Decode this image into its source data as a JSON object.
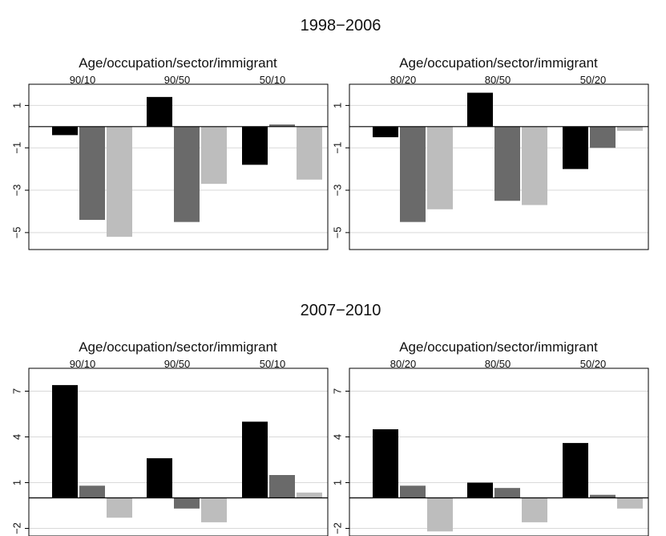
{
  "colors": {
    "bar_series_1": "#000000",
    "bar_series_2": "#6a6a6a",
    "bar_series_3": "#bdbdbd",
    "gridline": "#d9d9d9",
    "frame": "#000000"
  },
  "sections": [
    {
      "title": "1998−2006"
    },
    {
      "title": "2007−2010"
    }
  ],
  "chart_data": [
    {
      "type": "bar",
      "period": "1998−2006",
      "title": "Age/occupation/sector/immigrant",
      "categories": [
        "90/10",
        "90/50",
        "50/10"
      ],
      "series": [
        {
          "values": [
            -0.4,
            1.4,
            -1.8
          ]
        },
        {
          "values": [
            -4.4,
            -4.5,
            0.1
          ]
        },
        {
          "values": [
            -5.2,
            -2.7,
            -2.5
          ]
        }
      ],
      "ylim": [
        -5.8,
        2.0
      ],
      "yticks": [
        1,
        -1,
        -3,
        -5
      ],
      "ytick_labels": [
        "1",
        "−1",
        "−3",
        "−5"
      ],
      "grid": true
    },
    {
      "type": "bar",
      "period": "1998−2006",
      "title": "Age/occupation/sector/immigrant",
      "categories": [
        "80/20",
        "80/50",
        "50/20"
      ],
      "series": [
        {
          "values": [
            -0.5,
            1.6,
            -2.0
          ]
        },
        {
          "values": [
            -4.5,
            -3.5,
            -1.0
          ]
        },
        {
          "values": [
            -3.9,
            -3.7,
            -0.2
          ]
        }
      ],
      "ylim": [
        -5.8,
        2.0
      ],
      "yticks": [
        1,
        -1,
        -3,
        -5
      ],
      "ytick_labels": [
        "1",
        "−1",
        "−3",
        "−5"
      ],
      "grid": true
    },
    {
      "type": "bar",
      "period": "2007−2010",
      "title": "Age/occupation/sector/immigrant",
      "categories": [
        "90/10",
        "90/50",
        "50/10"
      ],
      "series": [
        {
          "values": [
            7.4,
            2.6,
            5.0
          ]
        },
        {
          "values": [
            0.8,
            -0.7,
            1.5
          ]
        },
        {
          "values": [
            -1.3,
            -1.6,
            0.35
          ]
        }
      ],
      "ylim": [
        -2.5,
        8.5
      ],
      "yticks": [
        7,
        4,
        1,
        -2
      ],
      "ytick_labels": [
        "7",
        "4",
        "1",
        "−2"
      ],
      "grid": true
    },
    {
      "type": "bar",
      "period": "2007−2010",
      "title": "Age/occupation/sector/immigrant",
      "categories": [
        "80/20",
        "80/50",
        "50/20"
      ],
      "series": [
        {
          "values": [
            4.5,
            1.0,
            3.6
          ]
        },
        {
          "values": [
            0.8,
            0.65,
            0.2
          ]
        },
        {
          "values": [
            -2.2,
            -1.6,
            -0.7
          ]
        }
      ],
      "ylim": [
        -2.5,
        8.5
      ],
      "yticks": [
        7,
        4,
        1,
        -2
      ],
      "ytick_labels": [
        "7",
        "4",
        "1",
        "−2"
      ],
      "grid": true
    }
  ]
}
